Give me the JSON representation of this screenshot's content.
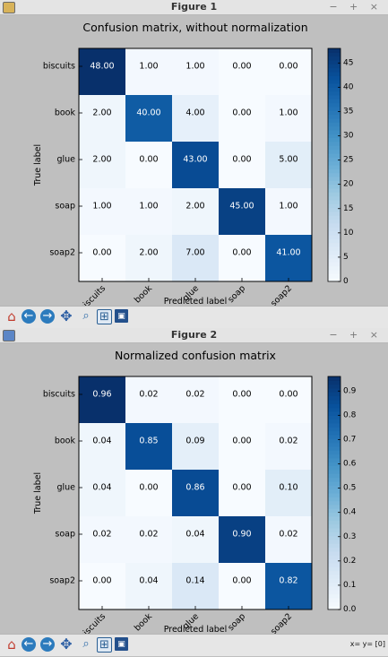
{
  "windows": [
    {
      "title": "Figure 1",
      "controls": "− + ×",
      "coords": "",
      "chart_data": {
        "type": "heatmap",
        "title": "Confusion matrix, without normalization",
        "xlabel": "Predicted label",
        "ylabel": "True label",
        "categories": [
          "biscuits",
          "book",
          "glue",
          "soap",
          "soap2"
        ],
        "matrix": [
          [
            48,
            1,
            1,
            0,
            0
          ],
          [
            2,
            40,
            4,
            0,
            1
          ],
          [
            2,
            0,
            43,
            0,
            5
          ],
          [
            1,
            1,
            2,
            45,
            1
          ],
          [
            0,
            2,
            7,
            0,
            41
          ]
        ],
        "cell_labels": [
          [
            "48.00",
            "1.00",
            "1.00",
            "0.00",
            "0.00"
          ],
          [
            "2.00",
            "40.00",
            "4.00",
            "0.00",
            "1.00"
          ],
          [
            "2.00",
            "0.00",
            "43.00",
            "0.00",
            "5.00"
          ],
          [
            "1.00",
            "1.00",
            "2.00",
            "45.00",
            "1.00"
          ],
          [
            "0.00",
            "2.00",
            "7.00",
            "0.00",
            "41.00"
          ]
        ],
        "colorbar_range": [
          0,
          48
        ],
        "colorbar_ticks": [
          "0",
          "5",
          "10",
          "15",
          "20",
          "25",
          "30",
          "35",
          "40",
          "45"
        ],
        "colormap": "Blues"
      }
    },
    {
      "title": "Figure 2",
      "controls": "− + ×",
      "coords": "x= y= [0]",
      "chart_data": {
        "type": "heatmap",
        "title": "Normalized confusion matrix",
        "xlabel": "Predicted label",
        "ylabel": "True label",
        "categories": [
          "biscuits",
          "book",
          "glue",
          "soap",
          "soap2"
        ],
        "matrix": [
          [
            0.96,
            0.02,
            0.02,
            0.0,
            0.0
          ],
          [
            0.04,
            0.85,
            0.09,
            0.0,
            0.02
          ],
          [
            0.04,
            0.0,
            0.86,
            0.0,
            0.1
          ],
          [
            0.02,
            0.02,
            0.04,
            0.9,
            0.02
          ],
          [
            0.0,
            0.04,
            0.14,
            0.0,
            0.82
          ]
        ],
        "cell_labels": [
          [
            "0.96",
            "0.02",
            "0.02",
            "0.00",
            "0.00"
          ],
          [
            "0.04",
            "0.85",
            "0.09",
            "0.00",
            "0.02"
          ],
          [
            "0.04",
            "0.00",
            "0.86",
            "0.00",
            "0.10"
          ],
          [
            "0.02",
            "0.02",
            "0.04",
            "0.90",
            "0.02"
          ],
          [
            "0.00",
            "0.04",
            "0.14",
            "0.00",
            "0.82"
          ]
        ],
        "colorbar_range": [
          0,
          0.96
        ],
        "colorbar_ticks": [
          "0.0",
          "0.1",
          "0.2",
          "0.3",
          "0.4",
          "0.5",
          "0.6",
          "0.7",
          "0.8",
          "0.9"
        ],
        "colormap": "Blues"
      }
    }
  ],
  "toolbar_icons": [
    "home-icon",
    "back-arrow-icon",
    "forward-arrow-icon",
    "pan-icon",
    "zoom-icon",
    "subplots-icon",
    "save-icon"
  ]
}
